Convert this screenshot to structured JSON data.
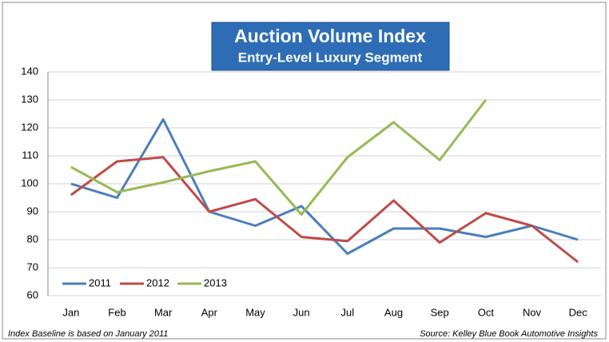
{
  "chart_data": {
    "type": "line",
    "title": "Auction Volume Index",
    "subtitle": "Entry-Level Luxury Segment",
    "categories": [
      "Jan",
      "Feb",
      "Mar",
      "Apr",
      "May",
      "Jun",
      "Jul",
      "Aug",
      "Sep",
      "Oct",
      "Nov",
      "Dec"
    ],
    "series": [
      {
        "name": "2011",
        "color": "#4a7ebb",
        "values": [
          100,
          95,
          123,
          90,
          85,
          92,
          75,
          84,
          84,
          81,
          85,
          80
        ]
      },
      {
        "name": "2012",
        "color": "#be4b48",
        "values": [
          96,
          108,
          109.5,
          90,
          94.5,
          81,
          79.5,
          94,
          79,
          89.5,
          85,
          72
        ]
      },
      {
        "name": "2013",
        "color": "#98b954",
        "values": [
          106,
          97,
          100.5,
          104.5,
          108,
          89,
          109.5,
          122,
          108.5,
          130,
          null,
          null
        ]
      }
    ],
    "ylim": [
      60,
      140
    ],
    "yticks": [
      60,
      70,
      80,
      90,
      100,
      110,
      120,
      130,
      140
    ],
    "grid": true,
    "legend": "lower left",
    "annotations": [
      "Index Baseline is based on January 2011",
      "Source: Kelley Blue Book Automotive Insights"
    ]
  }
}
